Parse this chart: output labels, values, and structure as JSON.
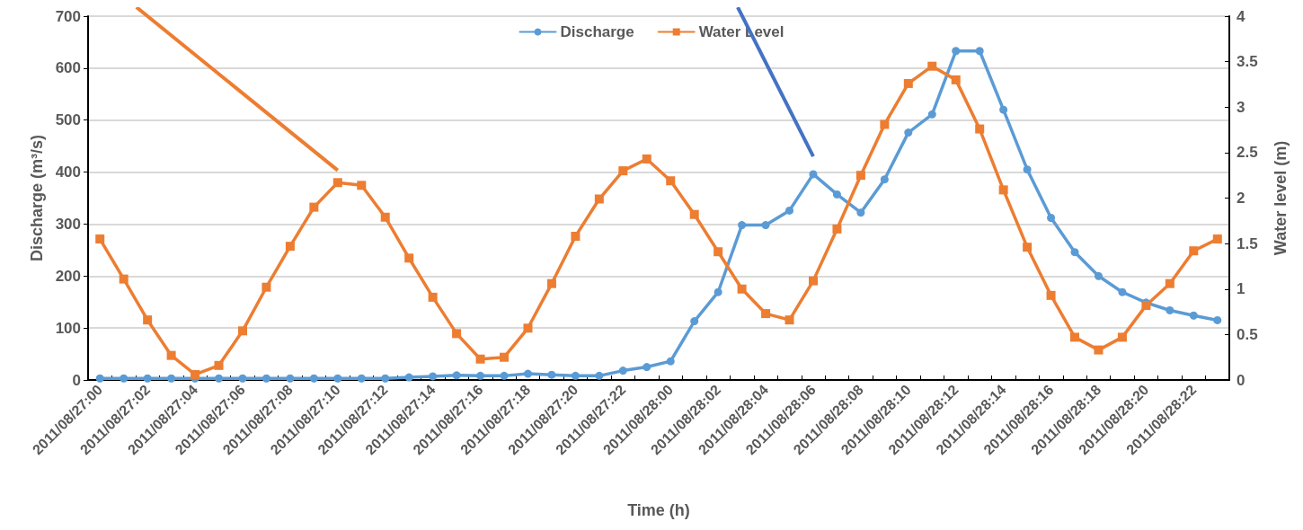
{
  "chart_data": {
    "type": "line",
    "xlabel": "Time (h)",
    "ylabel": "Discharge (m³/s)",
    "y2label": "Water level (m)",
    "categories": [
      "2011/08/27:00",
      null,
      "2011/08/27:02",
      null,
      "2011/08/27:04",
      null,
      "2011/08/27:06",
      null,
      "2011/08/27:08",
      null,
      "2011/08/27:10",
      null,
      "2011/08/27:12",
      null,
      "2011/08/27:14",
      null,
      "2011/08/27:16",
      null,
      "2011/08/27:18",
      null,
      "2011/08/27:20",
      null,
      "2011/08/27:22",
      null,
      "2011/08/28:00",
      null,
      "2011/08/28:02",
      null,
      "2011/08/28:04",
      null,
      "2011/08/28:06",
      null,
      "2011/08/28:08",
      null,
      "2011/08/28:10",
      null,
      "2011/08/28:12",
      null,
      "2011/08/28:14",
      null,
      "2011/08/28:16",
      null,
      "2011/08/28:18",
      null,
      "2011/08/28:20",
      null,
      "2011/08/28:22",
      null
    ],
    "series": [
      {
        "name": "Discharge",
        "color": "#5b9bd5",
        "marker": "circle",
        "values": [
          3,
          3,
          3,
          3,
          3,
          3,
          3,
          3,
          3,
          3,
          3,
          3,
          3,
          5,
          7,
          9,
          8,
          8,
          12,
          10,
          8,
          8,
          18,
          25,
          36,
          113,
          169,
          298,
          298,
          326,
          396,
          357,
          322,
          386,
          476,
          511,
          633,
          633,
          520,
          405,
          312,
          246,
          200,
          169,
          149,
          134,
          124,
          115
        ]
      },
      {
        "name": "Water Level",
        "color": "#ed7d31",
        "marker": "square",
        "axis": "y2",
        "values": [
          1.55,
          1.11,
          0.66,
          0.27,
          0.06,
          0.16,
          0.54,
          1.02,
          1.47,
          1.9,
          2.17,
          2.14,
          1.79,
          1.34,
          0.91,
          0.51,
          0.23,
          0.25,
          0.57,
          1.06,
          1.58,
          1.99,
          2.3,
          2.43,
          2.19,
          1.82,
          1.41,
          1.0,
          0.73,
          0.66,
          1.09,
          1.66,
          2.25,
          2.81,
          3.26,
          3.45,
          3.3,
          2.76,
          2.09,
          1.46,
          0.93,
          0.47,
          0.33,
          0.47,
          0.82,
          1.06,
          1.42,
          1.55
        ]
      }
    ],
    "ylim": [
      0,
      700
    ],
    "yticks": [
      0,
      100,
      200,
      300,
      400,
      500,
      600,
      700
    ],
    "y2lim": [
      0,
      4
    ],
    "y2ticks": [
      0,
      0.5,
      1,
      1.5,
      2,
      2.5,
      3,
      3.5,
      4
    ],
    "grid": "y",
    "legend": "top",
    "line_style": "solid"
  }
}
